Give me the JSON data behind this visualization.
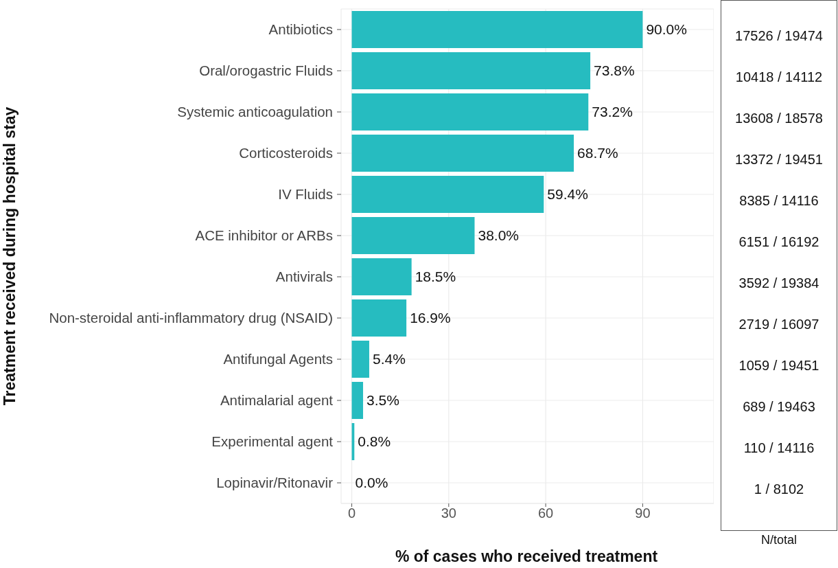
{
  "chart_data": {
    "type": "bar",
    "orientation": "horizontal",
    "xlabel": "% of cases who received treatment",
    "ylabel": "Treatment received during hospital stay",
    "categories": [
      "Antibiotics",
      "Oral/orogastric Fluids",
      "Systemic anticoagulation",
      "Corticosteroids",
      "IV Fluids",
      "ACE inhibitor or ARBs",
      "Antivirals",
      "Non-steroidal anti-inflammatory drug (NSAID)",
      "Antifungal Agents",
      "Antimalarial agent",
      "Experimental agent",
      "Lopinavir/Ritonavir"
    ],
    "values": [
      90.0,
      73.8,
      73.2,
      68.7,
      59.4,
      38.0,
      18.5,
      16.9,
      5.4,
      3.5,
      0.8,
      0.0
    ],
    "value_labels": [
      "90.0%",
      "73.8%",
      "73.2%",
      "68.7%",
      "59.4%",
      "38.0%",
      "18.5%",
      "16.9%",
      "5.4%",
      "3.5%",
      "0.8%",
      "0.0%"
    ],
    "color": "#26bcc0",
    "xlim": [
      -3.3,
      112
    ],
    "xticks": [
      0,
      30,
      60,
      90
    ],
    "grid": true,
    "legend": false,
    "annotations": [
      "17526 / 19474",
      "10418 / 14112",
      "13608 / 18578",
      "13372 / 19451",
      "8385 / 14116",
      "6151 / 16192",
      "3592 / 19384",
      "2719 / 16097",
      "1059 / 19451",
      "689 / 19463",
      "110 / 14116",
      "1 / 8102",
      "N/total"
    ]
  }
}
